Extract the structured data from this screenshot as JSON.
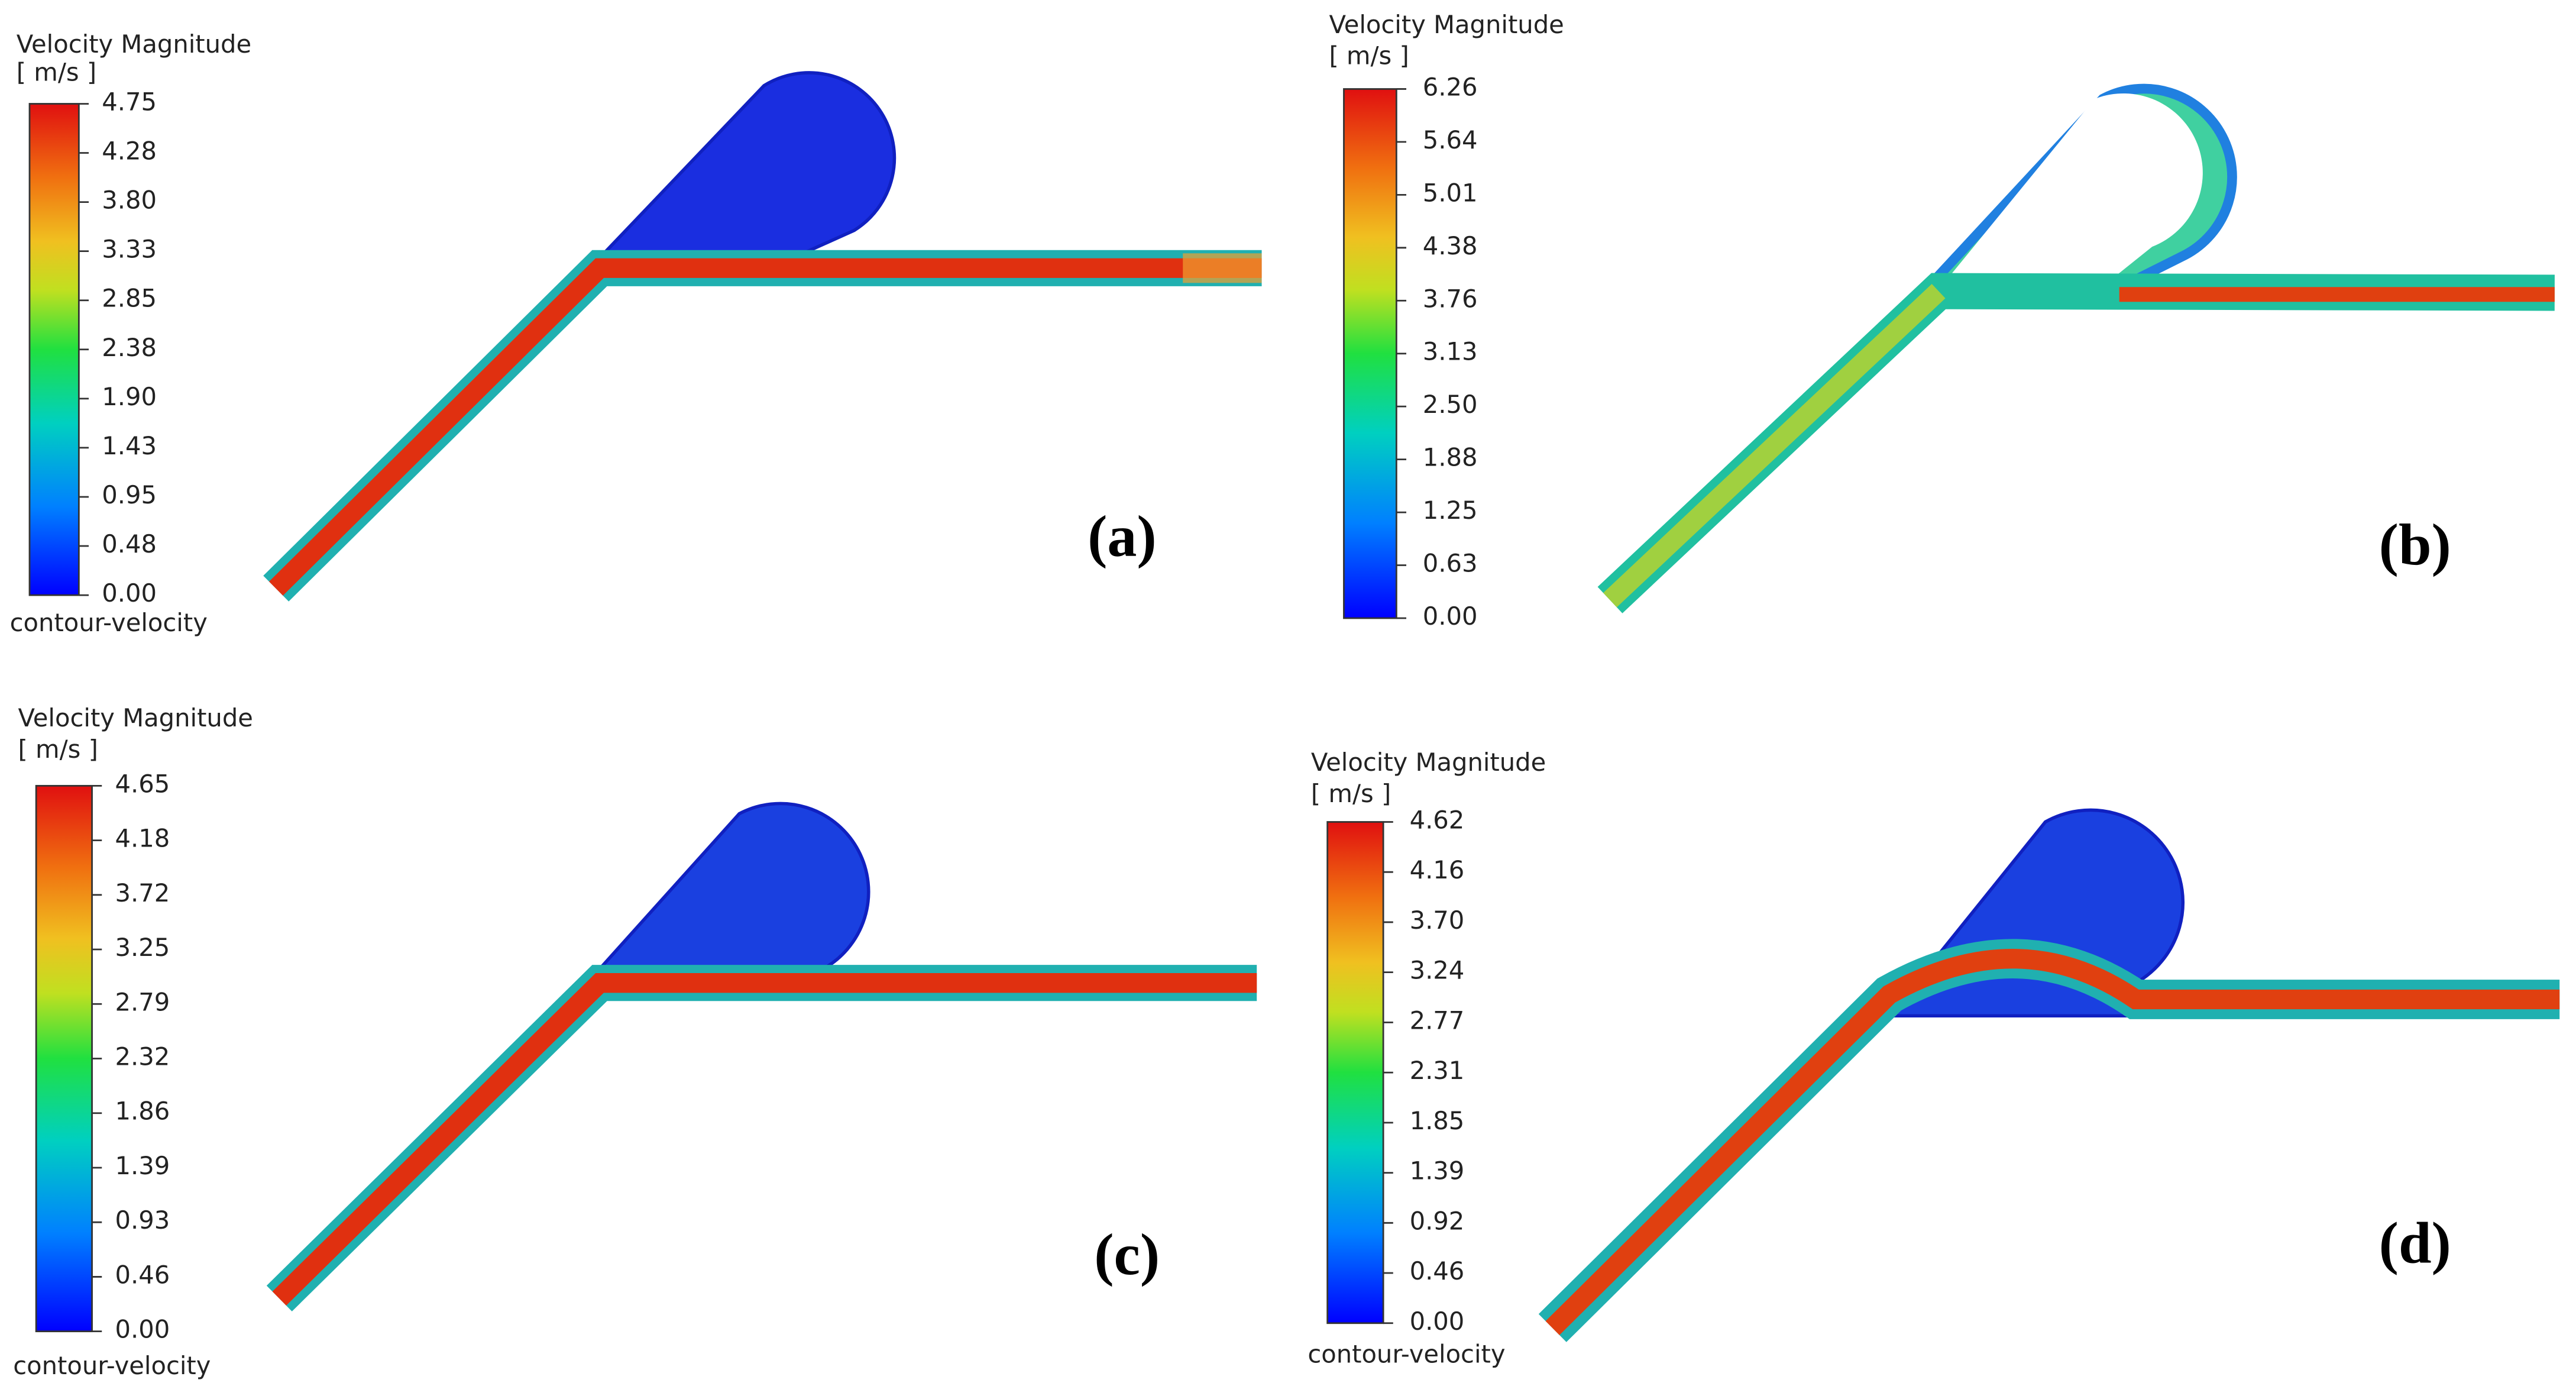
{
  "panels": [
    {
      "title": "Velocity Magnitude",
      "unit": "[ m/s ]",
      "ticks": [
        "4.75",
        "4.28",
        "3.80",
        "3.33",
        "2.85",
        "2.38",
        "1.90",
        "1.43",
        "0.95",
        "0.48",
        "0.00"
      ],
      "footer": "contour-velocity",
      "label": "(a)"
    },
    {
      "title": "Velocity Magnitude",
      "unit": "[ m/s ]",
      "ticks": [
        "6.26",
        "5.64",
        "5.01",
        "4.38",
        "3.76",
        "3.13",
        "2.50",
        "1.88",
        "1.25",
        "0.63",
        "0.00"
      ],
      "label": "(b)"
    },
    {
      "title": "Velocity Magnitude",
      "unit": "[ m/s ]",
      "ticks": [
        "4.65",
        "4.18",
        "3.72",
        "3.25",
        "2.79",
        "2.32",
        "1.86",
        "1.39",
        "0.93",
        "0.46",
        "0.00"
      ],
      "footer": "contour-velocity",
      "label": "(c)"
    },
    {
      "title": "Velocity Magnitude",
      "unit": "[ m/s ]",
      "ticks": [
        "4.62",
        "4.16",
        "3.70",
        "3.24",
        "2.77",
        "2.31",
        "1.85",
        "1.39",
        "0.92",
        "0.46",
        "0.00"
      ],
      "footer": "contour-velocity",
      "label": "(d)"
    }
  ]
}
